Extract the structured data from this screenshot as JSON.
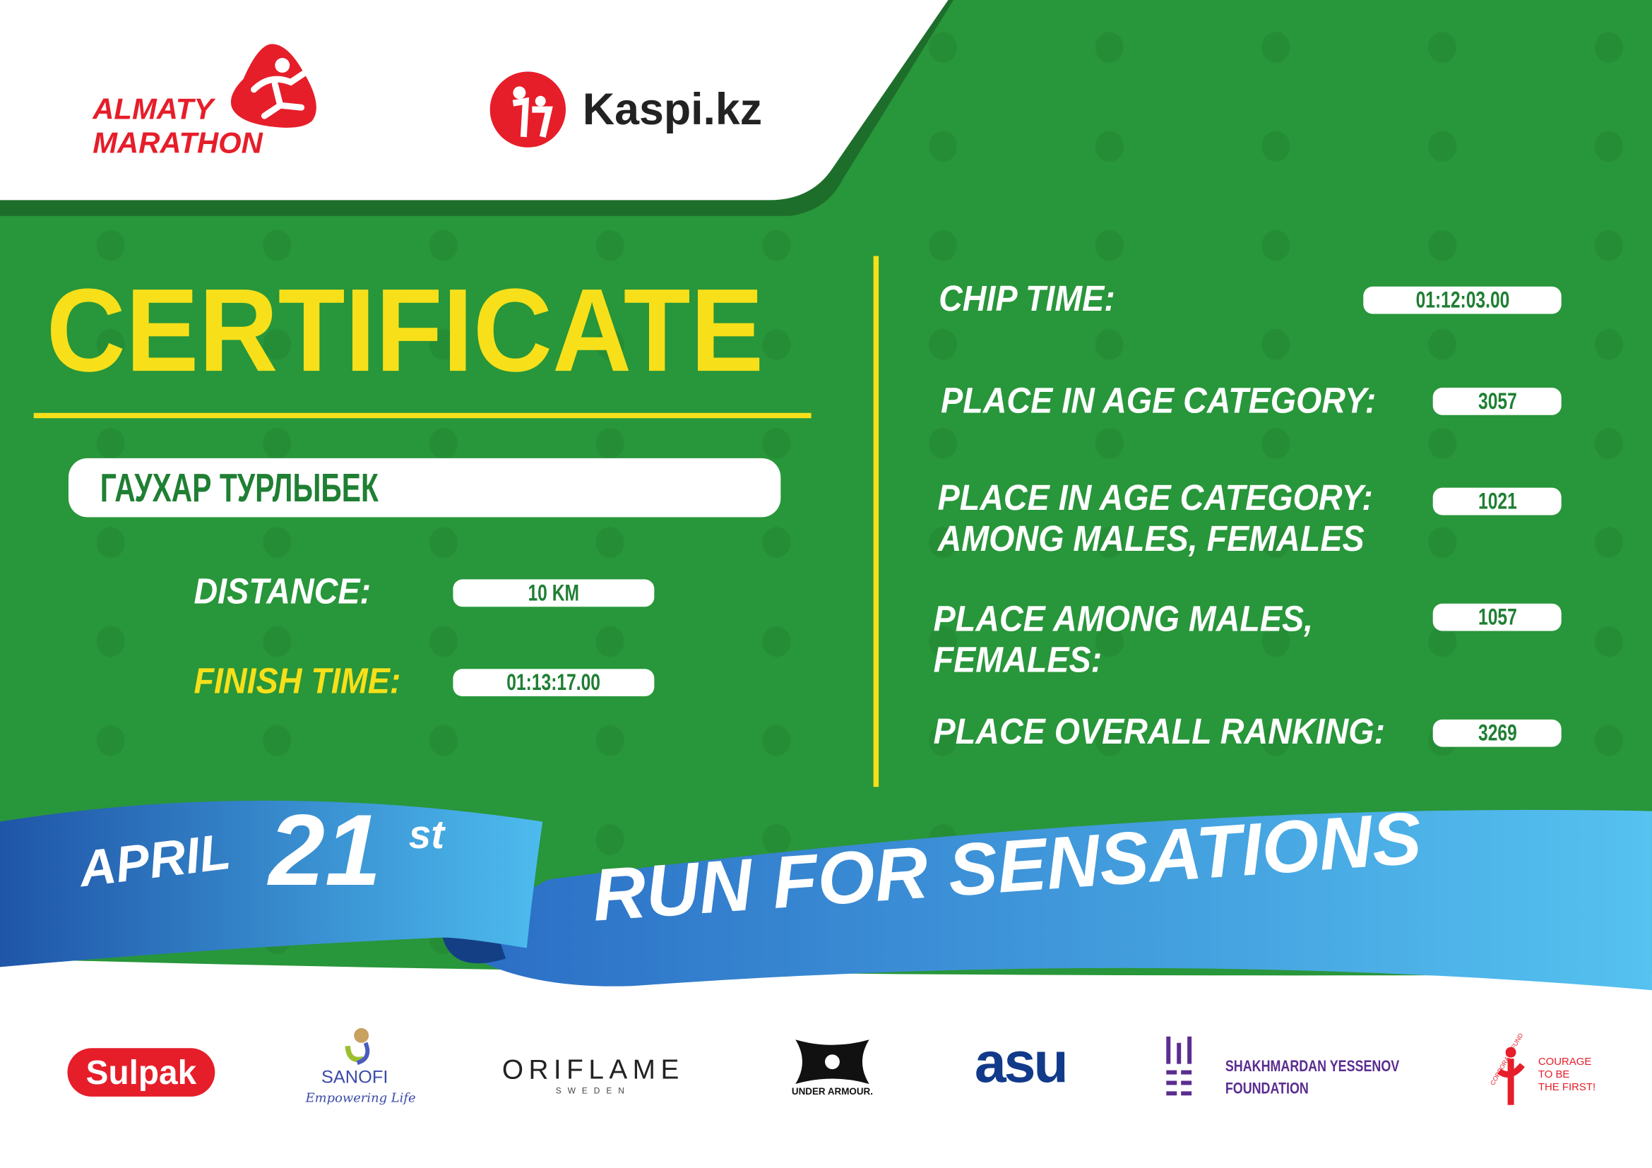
{
  "header": {
    "logo_line1": "ALMATY",
    "logo_line2": "MARATHON",
    "sponsor": "Kaspi.kz"
  },
  "certificate": {
    "title": "CERTIFICATE",
    "name": "ГАУХАР ТУРЛЫБЕК",
    "distance_label": "DISTANCE:",
    "distance_value": "10 KM",
    "finish_label": "FINISH TIME:",
    "finish_value": "01:13:17.00"
  },
  "results": [
    {
      "label": "CHIP TIME:",
      "value": "01:12:03.00"
    },
    {
      "label": "PLACE IN AGE CATEGORY:",
      "value": "3057"
    },
    {
      "label": "PLACE IN AGE CATEGORY:\nAMONG MALES, FEMALES",
      "value": "1021"
    },
    {
      "label": "PLACE AMONG MALES,\nFEMALES:",
      "value": "1057"
    },
    {
      "label": "PLACE OVERALL RANKING:",
      "value": "3269"
    }
  ],
  "ribbon": {
    "month": "APRIL",
    "day": "21",
    "suffix": "st",
    "slogan": "RUN FOR SENSATIONS"
  },
  "partners": {
    "sulpak": "Sulpak",
    "sanofi": "SANOFI",
    "sanofi_tag": "Empowering Life",
    "oriflame": "ORIFLAME",
    "oriflame_sub": "SWEDEN",
    "under_armour": "UNDER ARMOUR.",
    "asu": "asu",
    "yessenov_1": "SHAKHMARDAN YESSENOV",
    "yessenov_2": "FOUNDATION",
    "courage_arc": "CORPORATE FUND",
    "courage_1": "COURAGE",
    "courage_2": "TO BE",
    "courage_3": "THE FIRST!"
  },
  "colors": {
    "green": "#28963a",
    "yellow": "#f7e01a",
    "red": "#e61e2a",
    "blue": "#2f7fd0"
  }
}
